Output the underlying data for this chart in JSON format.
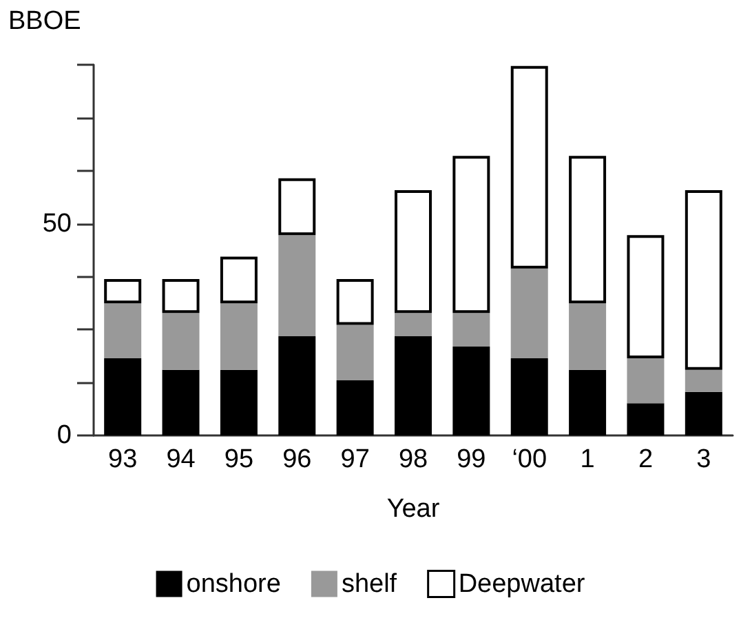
{
  "chart_data": {
    "type": "bar",
    "stacked": true,
    "xlabel": "Year",
    "ylabel": "BBOE",
    "categories": [
      "93",
      "94",
      "95",
      "96",
      "97",
      "98",
      "99",
      "‘00",
      "1",
      "2",
      "3"
    ],
    "series": [
      {
        "name": "onshore",
        "color": "#000000",
        "values": [
          18.2,
          15.5,
          15.5,
          23.4,
          13.0,
          23.4,
          21.0,
          18.2,
          15.5,
          7.6,
          10.3
        ]
      },
      {
        "name": "shelf",
        "color": "#999999",
        "values": [
          13.0,
          13.4,
          15.7,
          23.9,
          13.1,
          5.5,
          7.9,
          21.2,
          15.7,
          10.6,
          5.2
        ]
      },
      {
        "name": "Deepwater",
        "color": "#ffffff",
        "values": [
          5.7,
          8.0,
          11.0,
          13.4,
          10.8,
          29.0,
          37.1,
          47.8,
          34.8,
          29.1,
          42.4
        ]
      }
    ],
    "ylim": [
      0,
      87.5
    ],
    "yticks": [
      0,
      {
        "value": 12.5,
        "label": null
      },
      {
        "value": 25,
        "label": null
      },
      {
        "value": 37.5,
        "label": null
      },
      50,
      {
        "value": 62.5,
        "label": null
      },
      {
        "value": 75,
        "label": null
      },
      {
        "value": 87.5,
        "label": null
      }
    ],
    "grid": false,
    "legend": "bottom"
  }
}
